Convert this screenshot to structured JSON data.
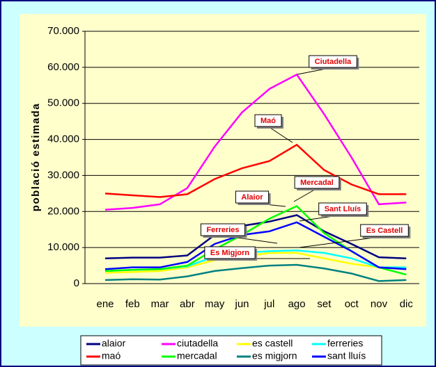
{
  "chart_data": {
    "type": "line",
    "y_label": "població estimada",
    "categories": [
      "ene",
      "feb",
      "mar",
      "abr",
      "may",
      "jun",
      "jul",
      "ago",
      "set",
      "oct",
      "nov",
      "dic"
    ],
    "ylim": [
      0,
      70000
    ],
    "yticks": [
      0,
      {
        "value": 10000,
        "label": "10.000"
      },
      {
        "value": 20000,
        "label": "20.000"
      },
      {
        "value": 30000,
        "label": "30.000"
      },
      {
        "value": 40000,
        "label": "40.000"
      },
      {
        "value": 50000,
        "label": "50.000"
      },
      {
        "value": 60000,
        "label": "60.000"
      },
      {
        "value": 70000,
        "label": "70.000"
      }
    ],
    "grid": true,
    "series": [
      {
        "name": "alaior",
        "color": "#000080",
        "values": [
          7000,
          7200,
          7200,
          7800,
          13500,
          16000,
          17200,
          19000,
          14500,
          11000,
          7300,
          7000
        ]
      },
      {
        "name": "ciutadella",
        "color": "#ff00ff",
        "values": [
          20500,
          21000,
          22000,
          26500,
          38000,
          47500,
          54000,
          58000,
          47000,
          35000,
          22000,
          22500
        ]
      },
      {
        "name": "es castell",
        "color": "#ffff00",
        "values": [
          3000,
          3200,
          3500,
          4500,
          6500,
          7500,
          8500,
          8500,
          7000,
          5500,
          4500,
          4500
        ]
      },
      {
        "name": "ferreries",
        "color": "#00ffff",
        "values": [
          3500,
          3800,
          4000,
          4800,
          7500,
          8500,
          9000,
          9200,
          8500,
          7000,
          4500,
          4500
        ]
      },
      {
        "name": "maó",
        "color": "#ff0000",
        "values": [
          25000,
          24500,
          24000,
          24800,
          29000,
          32000,
          34000,
          38500,
          31500,
          27500,
          24800,
          24800
        ]
      },
      {
        "name": "mercadal",
        "color": "#00ff00",
        "values": [
          3500,
          3800,
          4000,
          5000,
          9500,
          13500,
          18000,
          21500,
          14000,
          9000,
          4500,
          2500
        ]
      },
      {
        "name": "es migjorn",
        "color": "#008080",
        "values": [
          1000,
          1200,
          1100,
          2000,
          3500,
          4300,
          5000,
          5200,
          4200,
          2800,
          700,
          1000
        ]
      },
      {
        "name": "sant lluís",
        "color": "#0000ff",
        "values": [
          4000,
          4500,
          4500,
          6000,
          11000,
          13500,
          14500,
          17000,
          13000,
          9000,
          4500,
          4000
        ]
      }
    ],
    "annotations": [
      "Ciutadella",
      "Maó",
      "Mercadal",
      "Alaior",
      "Sant Lluís",
      "Ferreries",
      "Es Castell",
      "Es Migjorn"
    ]
  }
}
